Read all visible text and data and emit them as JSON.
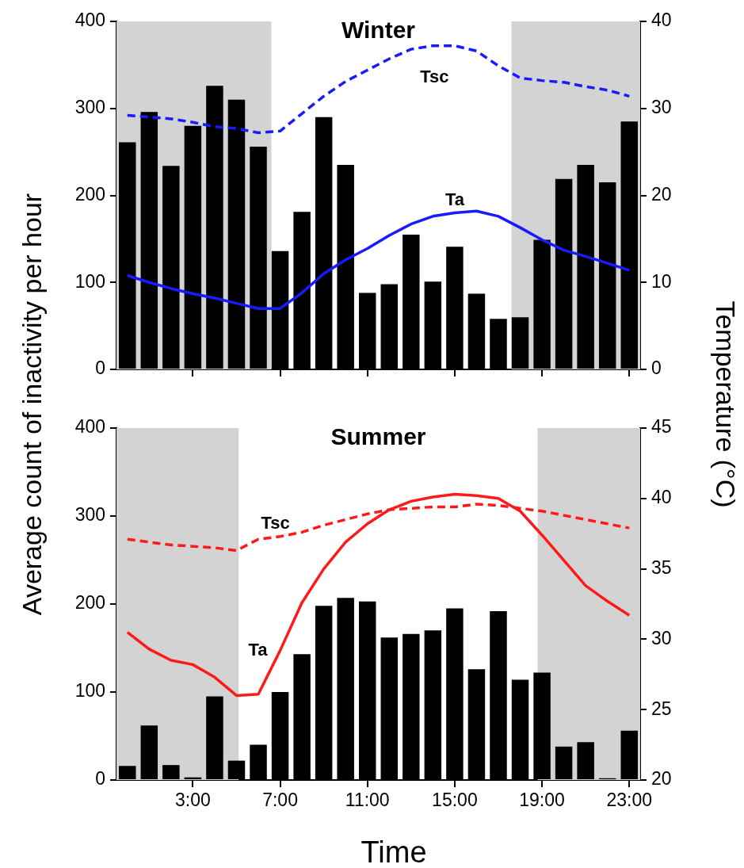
{
  "chart_data": [
    {
      "type": "bar",
      "title": "Winter",
      "ylabel": "Average count of inactivity per hour",
      "y2label": "Temperature (°C)",
      "x": [
        0,
        1,
        2,
        3,
        4,
        5,
        6,
        7,
        8,
        9,
        10,
        11,
        12,
        13,
        14,
        15,
        16,
        17,
        18,
        19,
        20,
        21,
        22,
        23
      ],
      "xlim": [
        -0.5,
        23.5
      ],
      "xticks": [
        {
          "value": 3,
          "label": null
        },
        {
          "value": 7,
          "label": null
        },
        {
          "value": 11,
          "label": null
        },
        {
          "value": 15,
          "label": null
        },
        {
          "value": 19,
          "label": null
        },
        {
          "value": 23,
          "label": null
        }
      ],
      "ylim": [
        0,
        400
      ],
      "yticks": [
        0,
        100,
        200,
        300,
        400
      ],
      "y2lim": [
        0,
        40
      ],
      "y2ticks": [
        0,
        10,
        20,
        30,
        40
      ],
      "tick_labels": "y",
      "grid": false,
      "legend": false,
      "series": [
        {
          "color": "#000000",
          "values": [
            261,
            296,
            234,
            280,
            326,
            310,
            256,
            136,
            181,
            290,
            235,
            88,
            98,
            155,
            101,
            141,
            87,
            58,
            60,
            149,
            219,
            235,
            215,
            285
          ]
        },
        {
          "type": "line",
          "name": "Ta",
          "axis": "y2",
          "color": "#1a1aff",
          "line_style": "solid",
          "values": [
            10.8,
            10.0,
            9.3,
            8.7,
            8.2,
            7.6,
            7.0,
            7.0,
            8.8,
            11.0,
            12.6,
            13.9,
            15.4,
            16.7,
            17.6,
            18.0,
            18.2,
            17.6,
            16.3,
            14.9,
            13.7,
            13.0,
            12.2,
            11.4
          ]
        },
        {
          "type": "line",
          "name": "Tsc",
          "axis": "y2",
          "color": "#1a1aff",
          "line_style": "dashed",
          "values": [
            29.2,
            29.0,
            28.8,
            28.4,
            27.9,
            27.7,
            27.2,
            27.4,
            29.4,
            31.4,
            33.1,
            34.4,
            35.7,
            36.8,
            37.2,
            37.2,
            36.6,
            34.9,
            33.5,
            33.2,
            33.0,
            32.5,
            32.1,
            31.4
          ]
        }
      ],
      "bands": [
        {
          "axis": "x",
          "from": -0.5,
          "to": 6.6,
          "color": "#d3d3d3"
        },
        {
          "axis": "x",
          "from": 17.6,
          "to": 23.5,
          "color": "#d3d3d3"
        }
      ]
    },
    {
      "type": "bar",
      "title": "Summer",
      "xlabel": "Time",
      "x": [
        0,
        1,
        2,
        3,
        4,
        5,
        6,
        7,
        8,
        9,
        10,
        11,
        12,
        13,
        14,
        15,
        16,
        17,
        18,
        19,
        20,
        21,
        22,
        23
      ],
      "xlim": [
        -0.5,
        23.5
      ],
      "xticks": [
        {
          "value": 3,
          "label": "3:00"
        },
        {
          "value": 7,
          "label": "7:00"
        },
        {
          "value": 11,
          "label": "11:00"
        },
        {
          "value": 15,
          "label": "15:00"
        },
        {
          "value": 19,
          "label": "19:00"
        },
        {
          "value": 23,
          "label": "23:00"
        }
      ],
      "ylim": [
        0,
        400
      ],
      "yticks": [
        0,
        100,
        200,
        300,
        400
      ],
      "y2lim": [
        20,
        45
      ],
      "y2ticks": [
        20,
        25,
        30,
        35,
        40,
        45
      ],
      "grid": false,
      "legend": false,
      "series": [
        {
          "color": "#000000",
          "values": [
            16,
            62,
            17,
            3,
            95,
            22,
            40,
            100,
            143,
            198,
            207,
            203,
            162,
            166,
            170,
            195,
            126,
            192,
            114,
            122,
            38,
            43,
            2,
            56
          ]
        },
        {
          "type": "line",
          "name": "Ta",
          "axis": "y2",
          "color": "#ff1a1a",
          "line_style": "solid",
          "values": [
            30.5,
            29.3,
            28.5,
            28.2,
            27.3,
            26.0,
            26.1,
            29.2,
            32.6,
            35.0,
            36.9,
            38.2,
            39.2,
            39.8,
            40.1,
            40.3,
            40.2,
            40.0,
            39.1,
            37.4,
            35.6,
            33.8,
            32.7,
            31.7
          ]
        },
        {
          "type": "line",
          "name": "Tsc",
          "axis": "y2",
          "color": "#ff1a1a",
          "line_style": "dashed",
          "values": [
            37.1,
            36.9,
            36.7,
            36.6,
            36.5,
            36.3,
            37.1,
            37.3,
            37.6,
            38.1,
            38.5,
            38.9,
            39.2,
            39.3,
            39.4,
            39.4,
            39.6,
            39.5,
            39.3,
            39.1,
            38.8,
            38.5,
            38.2,
            37.9
          ]
        }
      ],
      "bands": [
        {
          "axis": "x",
          "from": -0.5,
          "to": 5.1,
          "color": "#d3d3d3"
        },
        {
          "axis": "x",
          "from": 18.8,
          "to": 23.5,
          "color": "#d3d3d3"
        }
      ]
    }
  ]
}
